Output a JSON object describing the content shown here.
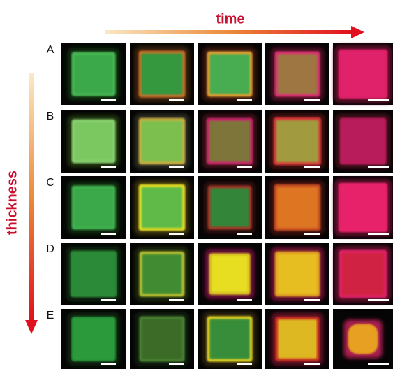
{
  "header": {
    "title": "time"
  },
  "side": {
    "label": "thickness"
  },
  "rows": [
    {
      "label": "A"
    },
    {
      "label": "B"
    },
    {
      "label": "C"
    },
    {
      "label": "D"
    },
    {
      "label": "E"
    }
  ]
}
